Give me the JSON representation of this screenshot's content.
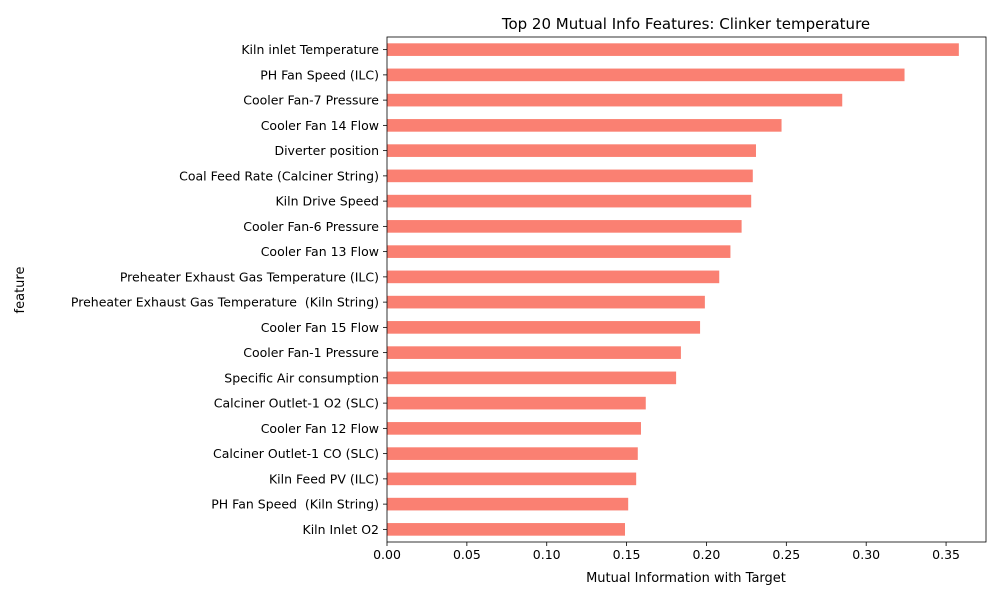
{
  "chart_data": {
    "type": "bar",
    "orientation": "horizontal",
    "title": "Top 20 Mutual Info Features: Clinker temperature",
    "xlabel": "Mutual Information with Target",
    "ylabel": "feature",
    "xlim": [
      0,
      0.375
    ],
    "xticks": [
      "0.00",
      "0.05",
      "0.10",
      "0.15",
      "0.20",
      "0.25",
      "0.30",
      "0.35"
    ],
    "grid": false,
    "bar_color": "#fa8072",
    "categories": [
      "Kiln inlet Temperature",
      "PH Fan Speed (ILC)",
      "Cooler Fan-7 Pressure",
      "Cooler Fan 14 Flow",
      "Diverter position",
      "Coal Feed Rate (Calciner String)",
      "Kiln Drive Speed",
      "Cooler Fan-6 Pressure",
      "Cooler Fan 13 Flow",
      "Preheater Exhaust Gas Temperature (ILC)",
      "Preheater Exhaust Gas Temperature  (Kiln String)",
      "Cooler Fan 15 Flow",
      "Cooler Fan-1 Pressure",
      "Specific Air consumption",
      "Calciner Outlet-1 O2 (SLC)",
      "Cooler Fan 12 Flow",
      "Calciner Outlet-1 CO (SLC)",
      "Kiln Feed PV (ILC)",
      "PH Fan Speed  (Kiln String)",
      "Kiln Inlet O2"
    ],
    "values": [
      0.358,
      0.324,
      0.285,
      0.247,
      0.231,
      0.229,
      0.228,
      0.222,
      0.215,
      0.208,
      0.199,
      0.196,
      0.184,
      0.181,
      0.162,
      0.159,
      0.157,
      0.156,
      0.151,
      0.149
    ]
  }
}
